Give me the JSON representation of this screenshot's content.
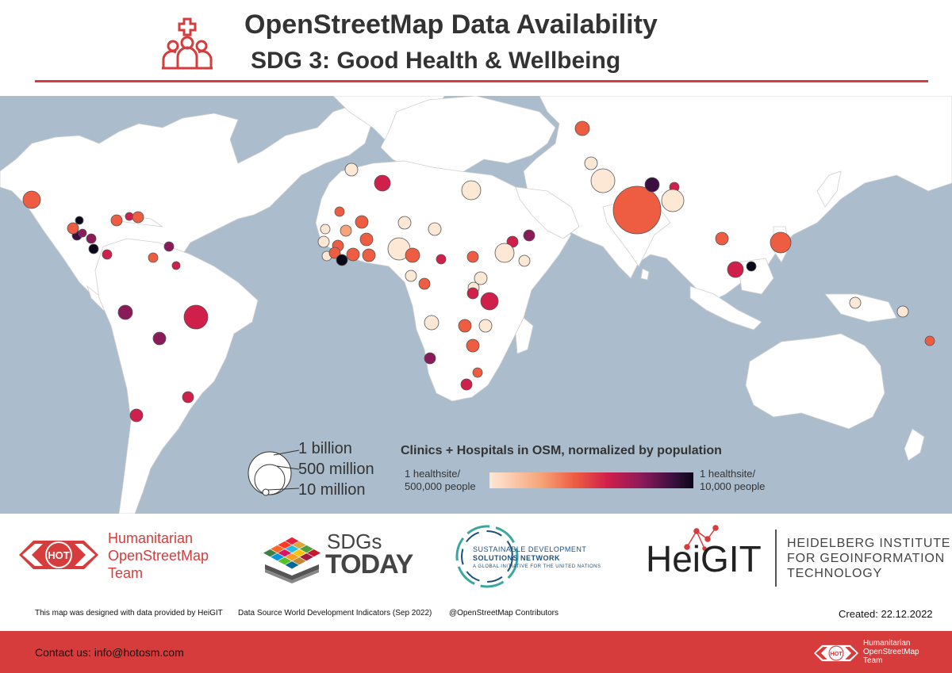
{
  "header": {
    "title": "OpenStreetMap Data Availability",
    "subtitle": "SDG 3: Good Health & Wellbeing",
    "icon": "health-group-icon"
  },
  "legend": {
    "size_labels": [
      "1 billion",
      "500 million",
      "10 million"
    ],
    "color_title": "Clinics + Hospitals in OSM, normalized by population",
    "low_label_line1": "1 healthsite/",
    "low_label_line2": "500,000 people",
    "high_label_line1": "1 healthsite/",
    "high_label_line2": "10,000 people",
    "colors": [
      "#fde8d6",
      "#f6a57a",
      "#ee5c42",
      "#d01f4a",
      "#8a1a5a",
      "#3a1040",
      "#0b0718"
    ]
  },
  "logos": {
    "hot_line1": "Humanitarian",
    "hot_line2": "OpenStreetMap",
    "hot_line3": "Team",
    "hot_badge": "HOT",
    "sdgs_line1": "SDGs",
    "sdgs_line2": "TODAY",
    "sdsn_line1": "SUSTAINABLE DEVELOPMENT",
    "sdsn_line2": "SOLUTIONS NETWORK",
    "sdsn_line3": "A GLOBAL INITIATIVE FOR THE UNITED NATIONS",
    "heigit_word": "HeiGIT",
    "heigit_line1": "HEIDELBERG INSTITUTE",
    "heigit_line2": "FOR GEOINFORMATION",
    "heigit_line3": "TECHNOLOGY"
  },
  "credits": {
    "designed": "This map was designed with data provided by HeiGIT",
    "source": "Data Source World Development Indicators (Sep 2022)",
    "osm": "@OpenStreetMap Contributors",
    "created": "Created: 22.12.2022"
  },
  "footer": {
    "contact": "Contact us: info@hotosm.com",
    "hot_line1": "Humanitarian",
    "hot_line2": "OpenStreetMap",
    "hot_line3": "Team",
    "hot_badge": "HOT"
  },
  "colors": {
    "accent": "#d63c3c",
    "ocean": "#abbdcd",
    "land": "#ffffff"
  }
}
